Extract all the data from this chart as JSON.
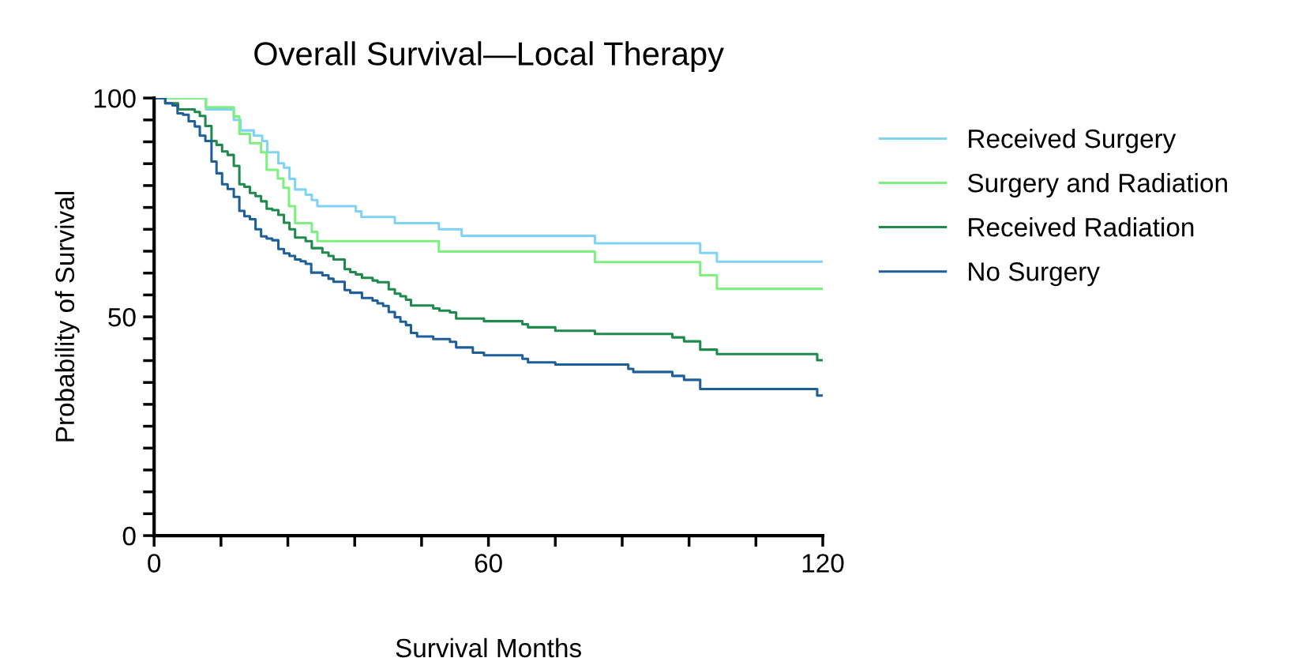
{
  "chart_data": {
    "type": "step",
    "title": "Overall Survival—Local Therapy",
    "xlabel": "Survival Months",
    "ylabel": "Probability of Survival",
    "xlim": [
      0,
      120
    ],
    "ylim": [
      0,
      100
    ],
    "xticks": [
      0,
      {
        "value": 12,
        "label": null
      },
      {
        "value": 24,
        "label": null
      },
      {
        "value": 36,
        "label": null
      },
      {
        "value": 48,
        "label": null
      },
      60,
      {
        "value": 72,
        "label": null
      },
      {
        "value": 84,
        "label": null
      },
      {
        "value": 96,
        "label": null
      },
      {
        "value": 108,
        "label": null
      },
      120
    ],
    "yticks": [
      0,
      {
        "value": 5,
        "label": null
      },
      {
        "value": 10,
        "label": null
      },
      {
        "value": 15,
        "label": null
      },
      {
        "value": 20,
        "label": null
      },
      {
        "value": 25,
        "label": null
      },
      {
        "value": 30,
        "label": null
      },
      {
        "value": 35,
        "label": null
      },
      {
        "value": 40,
        "label": null
      },
      {
        "value": 45,
        "label": null
      },
      50,
      {
        "value": 55,
        "label": null
      },
      {
        "value": 60,
        "label": null
      },
      {
        "value": 65,
        "label": null
      },
      {
        "value": 70,
        "label": null
      },
      {
        "value": 75,
        "label": null
      },
      {
        "value": 80,
        "label": null
      },
      {
        "value": 85,
        "label": null
      },
      {
        "value": 90,
        "label": null
      },
      {
        "value": 95,
        "label": null
      },
      100
    ],
    "grid": false,
    "legend": "right",
    "marker": "none",
    "line_style": "solid",
    "series": [
      {
        "name": "Received Surgery",
        "color": "#7fd3f7",
        "x": [
          0,
          9.3,
          14.3,
          15.5,
          17.9,
          19.4,
          20.3,
          22.3,
          23.3,
          24.3,
          25.3,
          27.2,
          28.3,
          29.3,
          36.2,
          37.2,
          43.2,
          51.1,
          55.2,
          79.1,
          98.0,
          101.0,
          120
        ],
        "values": [
          100,
          97.4,
          95.0,
          92.6,
          91.4,
          90.2,
          87.6,
          85.1,
          84.1,
          81.5,
          79.1,
          77.9,
          76.7,
          75.3,
          74.1,
          72.8,
          71.4,
          70.0,
          68.5,
          66.8,
          64.6,
          62.6,
          62.6
        ]
      },
      {
        "name": "Surgery and Radiation",
        "color": "#7ff07f",
        "x": [
          0,
          9.3,
          14.3,
          15.3,
          17.2,
          19.2,
          20.2,
          22.2,
          23.2,
          24.2,
          25.3,
          28.3,
          29.3,
          51.1,
          79.1,
          98.0,
          101.0,
          120
        ],
        "values": [
          100,
          97.9,
          95.8,
          91.8,
          89.7,
          87.6,
          83.6,
          81.6,
          79.5,
          75.3,
          71.4,
          69.4,
          67.3,
          64.9,
          62.5,
          59.5,
          56.4,
          56.4
        ]
      },
      {
        "name": "Received Radiation",
        "color": "#1f8a4c",
        "x": [
          0,
          2.0,
          4.3,
          7.3,
          8.2,
          9.2,
          10.3,
          11.2,
          12.2,
          13.2,
          14.3,
          15.3,
          16.2,
          17.2,
          18.2,
          19.2,
          20.2,
          21.2,
          22.3,
          23.3,
          24.3,
          25.3,
          27.2,
          28.3,
          30.2,
          31.3,
          32.2,
          34.2,
          35.2,
          36.2,
          37.3,
          39.2,
          40.1,
          42.1,
          43.2,
          44.2,
          45.2,
          46.1,
          50.1,
          51.2,
          53.1,
          54.2,
          59.2,
          66.1,
          67.1,
          72.0,
          79.1,
          93.0,
          95.1,
          98.0,
          101.0,
          119.0,
          120
        ],
        "values": [
          100,
          98.8,
          97.4,
          96.8,
          95.9,
          93.6,
          90.2,
          89.3,
          87.8,
          87.0,
          84.5,
          80.3,
          79.7,
          78.3,
          77.6,
          76.4,
          74.7,
          74.4,
          73.3,
          71.5,
          70.0,
          68.1,
          67.3,
          65.7,
          64.7,
          63.9,
          63.1,
          60.9,
          60.2,
          59.7,
          58.9,
          58.3,
          57.9,
          56.3,
          55.3,
          54.7,
          53.9,
          52.6,
          51.9,
          51.4,
          51.0,
          49.6,
          49.0,
          48.3,
          47.6,
          46.8,
          46.1,
          45.3,
          44.4,
          42.5,
          41.5,
          40.1,
          40.1
        ]
      },
      {
        "name": "No Surgery",
        "color": "#1f5f99",
        "x": [
          0,
          2.0,
          3.3,
          4.2,
          5.2,
          6.2,
          7.3,
          8.2,
          9.2,
          10.3,
          11.2,
          12.2,
          13.2,
          14.3,
          15.3,
          16.2,
          17.2,
          18.2,
          19.2,
          20.2,
          21.2,
          22.3,
          23.3,
          24.3,
          25.3,
          26.3,
          27.2,
          28.2,
          30.2,
          31.3,
          32.2,
          34.2,
          35.2,
          37.3,
          39.2,
          40.1,
          41.1,
          42.1,
          43.2,
          44.2,
          45.2,
          46.1,
          47.2,
          50.1,
          53.1,
          54.2,
          57.2,
          59.2,
          66.1,
          67.1,
          72.0,
          85.1,
          86.0,
          93.0,
          95.1,
          98.0,
          119.0,
          120
        ],
        "values": [
          100,
          98.8,
          98.3,
          96.5,
          96.2,
          94.7,
          93.5,
          91.4,
          90.2,
          85.5,
          82.8,
          80.3,
          79.2,
          77.4,
          74.2,
          73.0,
          72.3,
          70.0,
          68.4,
          67.9,
          67.5,
          65.5,
          64.5,
          63.9,
          63.1,
          62.7,
          62.1,
          60.1,
          59.5,
          58.7,
          58.0,
          56.1,
          55.5,
          54.3,
          53.7,
          53.1,
          52.5,
          51.1,
          49.9,
          48.9,
          48.1,
          46.3,
          45.5,
          44.9,
          44.3,
          43.0,
          41.8,
          41.2,
          40.4,
          39.6,
          39.1,
          38.1,
          37.4,
          36.5,
          35.6,
          33.5,
          32.0,
          32.0
        ]
      }
    ]
  }
}
